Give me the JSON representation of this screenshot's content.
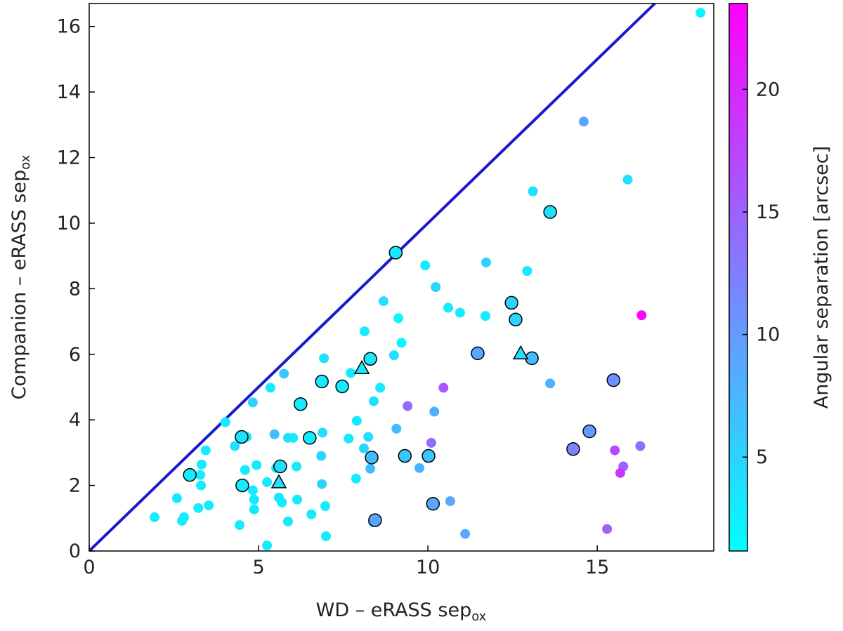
{
  "chart_data": {
    "type": "scatter",
    "xlabel": "WD – eRASS sep",
    "xlabel_sub": "ox",
    "ylabel": "Companion – eRASS sep",
    "ylabel_sub": "ox",
    "colorbar_label": "Angular separation [arcsec]",
    "xlim": [
      0,
      18.44
    ],
    "xticks": [
      0,
      5,
      10,
      15
    ],
    "ylim": [
      0,
      16.7
    ],
    "yticks": [
      0,
      2,
      4,
      6,
      8,
      10,
      12,
      14,
      16
    ],
    "clim": [
      1.17,
      23.5
    ],
    "cticks": [
      5,
      10,
      15,
      20
    ],
    "cmap": [
      "#00ffff",
      "#ff00ff"
    ],
    "diagonal": true,
    "diagonal_color": "#1a1acc",
    "series": [
      {
        "marker": "circle",
        "edge": false,
        "x": [
          18.05,
          14.6,
          15.9,
          13.1,
          9.92,
          11.72,
          12.93,
          10.23,
          8.69,
          10.6,
          10.95,
          11.7,
          9.13,
          8.13,
          9.22,
          9.0,
          6.93,
          16.31,
          13.61,
          10.46,
          8.59,
          5.75,
          5.35,
          7.72,
          4.83,
          8.4,
          9.4,
          10.19,
          4.02,
          7.9,
          9.07,
          4.3,
          4.65,
          5.47,
          5.87,
          6.02,
          6.89,
          7.66,
          8.24,
          10.1,
          16.27,
          3.44,
          3.32,
          4.94,
          6.12,
          8.11,
          8.3,
          9.75,
          15.52,
          15.77,
          15.68,
          6.85,
          3.28,
          3.3,
          4.6,
          5.52,
          5.25,
          6.87,
          7.88,
          2.59,
          4.83,
          4.87,
          5.6,
          5.69,
          6.14,
          10.66,
          3.53,
          3.22,
          4.87,
          6.97,
          1.93,
          2.74,
          2.8,
          5.87,
          6.56,
          4.44,
          8.38,
          11.1,
          15.29,
          6.99,
          5.25
        ],
        "y": [
          16.42,
          13.1,
          11.33,
          10.97,
          8.71,
          8.8,
          8.54,
          8.05,
          7.62,
          7.42,
          7.27,
          7.17,
          7.1,
          6.7,
          6.35,
          5.97,
          5.88,
          7.19,
          5.11,
          4.98,
          4.98,
          5.41,
          4.98,
          5.43,
          4.53,
          4.57,
          4.42,
          4.25,
          3.93,
          3.97,
          3.73,
          3.2,
          3.48,
          3.56,
          3.45,
          3.45,
          3.61,
          3.43,
          3.48,
          3.3,
          3.2,
          3.07,
          2.64,
          2.62,
          2.58,
          3.13,
          2.51,
          2.53,
          3.07,
          2.58,
          2.38,
          2.9,
          2.32,
          2.0,
          2.47,
          2.53,
          2.1,
          2.04,
          2.21,
          1.61,
          1.85,
          1.57,
          1.63,
          1.48,
          1.57,
          1.52,
          1.39,
          1.31,
          1.27,
          1.37,
          1.03,
          0.92,
          1.03,
          0.9,
          1.12,
          0.79,
          0.88,
          0.52,
          0.67,
          0.45,
          0.17
        ],
        "c": [
          2,
          9,
          4,
          4,
          3,
          5,
          3,
          5,
          4,
          3,
          3,
          3,
          2,
          3,
          2,
          4,
          4,
          23,
          8,
          16,
          3,
          6,
          3,
          3,
          5,
          4,
          14,
          8,
          3,
          3,
          7,
          4,
          3,
          7,
          4,
          3,
          4,
          3,
          4,
          14,
          14,
          3,
          3,
          3,
          3,
          5,
          7,
          8,
          17,
          15,
          19,
          5,
          3,
          3,
          3,
          4,
          3,
          5,
          3,
          3,
          3,
          3,
          3,
          3,
          3,
          9,
          3,
          3,
          3,
          3,
          3,
          3,
          3,
          3,
          3,
          3,
          6,
          9,
          15,
          3,
          3
        ]
      },
      {
        "marker": "circle",
        "edge": true,
        "x": [
          9.05,
          13.61,
          12.47,
          12.59,
          11.47,
          13.07,
          15.48,
          14.77,
          14.29,
          8.3,
          6.87,
          7.47,
          6.24,
          6.51,
          4.5,
          8.34,
          9.32,
          10.02,
          5.64,
          4.52,
          2.97,
          10.15,
          8.44
        ],
        "y": [
          9.1,
          10.34,
          7.57,
          7.06,
          6.03,
          5.88,
          5.21,
          3.65,
          3.11,
          5.86,
          5.17,
          5.02,
          4.48,
          3.45,
          3.48,
          2.85,
          2.9,
          2.9,
          2.58,
          2.0,
          2.32,
          1.44,
          0.94
        ],
        "c": [
          3,
          4,
          5,
          5,
          9,
          7,
          11,
          10,
          12,
          3,
          3,
          3,
          3,
          3,
          4,
          7,
          6,
          6,
          4,
          3,
          3,
          9,
          9
        ]
      },
      {
        "marker": "triangle",
        "edge": true,
        "x": [
          8.05,
          12.74,
          5.6
        ],
        "y": [
          5.56,
          6.01,
          2.08
        ],
        "c": [
          3,
          4,
          4
        ]
      }
    ]
  }
}
